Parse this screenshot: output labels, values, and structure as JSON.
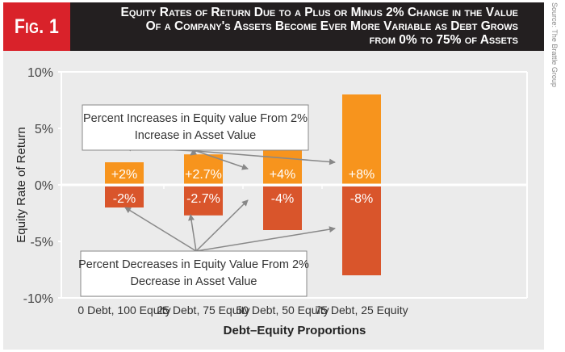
{
  "figure": {
    "badge": "Fig. 1",
    "title_lines": [
      "Equity Rates of Return Due to a Plus or Minus 2% Change in the Value",
      "Of a Company's Assets Become Ever More Variable as Debt Grows",
      "from  0% to 75% of Assets"
    ],
    "source": "Source: The Brattle Group"
  },
  "colors": {
    "increase": "#f7941d",
    "decrease": "#d9552b",
    "badge": "#d9222a",
    "title_bg": "#231f20",
    "background": "#ebebeb",
    "arrow": "#888888"
  },
  "chart_data": {
    "type": "bar",
    "title": "Equity Rates of Return Due to a Plus or Minus 2% Change in the Value Of a Company's Assets Become Ever More Variable as Debt Grows from 0% to 75% of Assets",
    "xlabel": "Debt–Equity Proportions",
    "ylabel": "Equity Rate of Return",
    "ylim": [
      -10,
      10
    ],
    "yticks": [
      10,
      5,
      0,
      -5,
      -10
    ],
    "ytick_labels": [
      "10%",
      "5%",
      "0%",
      "-5%",
      "-10%"
    ],
    "categories": [
      "0 Debt, 100 Equity",
      "25 Debt, 75 Equity",
      "50 Debt, 50 Equity",
      "75 Debt, 25 Equity"
    ],
    "series": [
      {
        "name": "Increase",
        "values": [
          2,
          2.7,
          4,
          8
        ],
        "labels": [
          "+2%",
          "+2.7%",
          "+4%",
          "+8%"
        ]
      },
      {
        "name": "Decrease",
        "values": [
          -2,
          -2.7,
          -4,
          -8
        ],
        "labels": [
          "-2%",
          "-2.7%",
          "-4%",
          "-8%"
        ]
      }
    ],
    "grid": false,
    "annotations": [
      {
        "lines": [
          "Percent Increases in Equity value From 2%",
          "Increase in Asset Value"
        ],
        "points_to": "Increase"
      },
      {
        "lines": [
          "Percent Decreases in Equity Value From 2%",
          "Decrease in Asset Value"
        ],
        "points_to": "Decrease"
      }
    ]
  }
}
